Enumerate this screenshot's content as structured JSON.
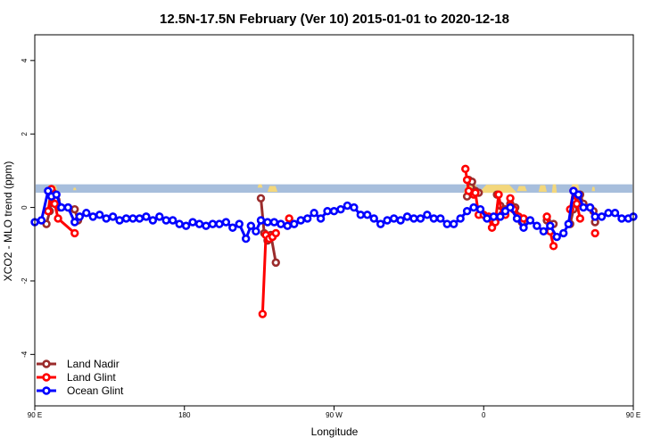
{
  "chart_data": {
    "type": "line",
    "title": "12.5N-17.5N February (Ver 10)   2015-01-01 to 2020-12-18",
    "xlabel": "Longitude",
    "ylabel": "XCO2 - MLO trend (ppm)",
    "xlim": [
      -90,
      270
    ],
    "ylim": [
      -5.4,
      4.7
    ],
    "x_ticks": [
      {
        "value": -90,
        "label": "90 E"
      },
      {
        "value": 0,
        "label": "180"
      },
      {
        "value": 90,
        "label": "90 W"
      },
      {
        "value": 180,
        "label": "0"
      },
      {
        "value": 270,
        "label": "90 E"
      }
    ],
    "y_ticks": [
      {
        "value": -4,
        "label": "-4"
      },
      {
        "value": -2,
        "label": "-2"
      },
      {
        "value": 0,
        "label": "0"
      },
      {
        "value": 2,
        "label": "2"
      },
      {
        "value": 4,
        "label": "4"
      }
    ],
    "grid": false,
    "legend_position": "bottom-left",
    "land_band": {
      "y_range": [
        0.4,
        0.63
      ],
      "ocean_color": "#a7bedc",
      "land_color": "#f3d77c"
    },
    "series": [
      {
        "name": "Land Nadir",
        "color": "#9b2c2c",
        "segments": [
          [
            [
              -83,
              -0.45
            ],
            [
              -81,
              -0.1
            ],
            [
              -79,
              0.4
            ],
            [
              -77,
              0.2
            ],
            [
              -75,
              0.0
            ],
            [
              -70,
              0.0
            ],
            [
              -66,
              -0.05
            ],
            [
              -64,
              -0.35
            ]
          ],
          [
            [
              46,
              0.25
            ],
            [
              48,
              -0.7
            ],
            [
              50,
              -0.9
            ],
            [
              52,
              -0.75
            ],
            [
              55,
              -1.5
            ]
          ],
          [
            [
              170,
              0.3
            ],
            [
              171,
              0.75
            ],
            [
              173,
              0.7
            ],
            [
              175,
              0.45
            ],
            [
              177,
              0.4
            ]
          ],
          [
            [
              188,
              0.35
            ],
            [
              190,
              0.05
            ],
            [
              193,
              -0.05
            ],
            [
              196,
              0.1
            ],
            [
              199,
              0.0
            ],
            [
              203,
              -0.4
            ]
          ],
          [
            [
              218,
              -0.35
            ],
            [
              220,
              -0.65
            ],
            [
              222,
              -0.45
            ]
          ],
          [
            [
              232,
              -0.45
            ],
            [
              234,
              -0.05
            ],
            [
              236,
              0.3
            ],
            [
              238,
              0.35
            ],
            [
              240,
              0.1
            ],
            [
              244,
              0.0
            ],
            [
              246,
              -0.1
            ],
            [
              247,
              -0.4
            ]
          ]
        ]
      },
      {
        "name": "Land Glint",
        "color": "#ff0000",
        "segments": [
          [
            [
              -82,
              -0.1
            ],
            [
              -80,
              0.5
            ],
            [
              -78,
              0.1
            ],
            [
              -76,
              -0.3
            ],
            [
              -66,
              -0.7
            ]
          ],
          [
            [
              47,
              -2.9
            ],
            [
              49,
              -0.75
            ],
            [
              51,
              -0.85
            ],
            [
              53,
              -0.8
            ],
            [
              55,
              -0.7
            ]
          ],
          [
            [
              63,
              -0.3
            ]
          ],
          [
            [
              169,
              1.05
            ],
            [
              170,
              0.75
            ],
            [
              171,
              0.45
            ],
            [
              174,
              0.35
            ],
            [
              175,
              0.4
            ],
            [
              177,
              -0.2
            ],
            [
              180,
              -0.2
            ],
            [
              183,
              -0.25
            ],
            [
              185,
              -0.55
            ],
            [
              187,
              -0.4
            ],
            [
              189,
              0.35
            ],
            [
              191,
              -0.2
            ],
            [
              193,
              -0.2
            ],
            [
              196,
              0.25
            ],
            [
              198,
              -0.05
            ],
            [
              201,
              -0.25
            ],
            [
              204,
              -0.3
            ]
          ],
          [
            [
              218,
              -0.25
            ],
            [
              220,
              -0.65
            ],
            [
              222,
              -1.05
            ]
          ],
          [
            [
              232,
              -0.05
            ],
            [
              234,
              0.45
            ],
            [
              236,
              0.1
            ],
            [
              238,
              -0.3
            ]
          ],
          [
            [
              247,
              -0.7
            ]
          ]
        ]
      },
      {
        "name": "Ocean Glint",
        "color": "#0000ff",
        "segments": [
          [
            [
              -90,
              -0.4
            ],
            [
              -86,
              -0.35
            ],
            [
              -82,
              0.45
            ],
            [
              -80,
              0.3
            ],
            [
              -77,
              0.35
            ],
            [
              -74,
              0.0
            ],
            [
              -70,
              0.0
            ],
            [
              -66,
              -0.4
            ],
            [
              -63,
              -0.25
            ],
            [
              -59,
              -0.15
            ],
            [
              -55,
              -0.25
            ],
            [
              -51,
              -0.2
            ],
            [
              -47,
              -0.3
            ],
            [
              -43,
              -0.25
            ],
            [
              -39,
              -0.35
            ],
            [
              -35,
              -0.3
            ],
            [
              -31,
              -0.3
            ],
            [
              -27,
              -0.3
            ],
            [
              -23,
              -0.25
            ],
            [
              -19,
              -0.35
            ],
            [
              -15,
              -0.25
            ],
            [
              -11,
              -0.35
            ],
            [
              -7,
              -0.35
            ],
            [
              -3,
              -0.45
            ],
            [
              1,
              -0.5
            ],
            [
              5,
              -0.4
            ],
            [
              9,
              -0.45
            ],
            [
              13,
              -0.5
            ],
            [
              17,
              -0.45
            ],
            [
              21,
              -0.45
            ],
            [
              25,
              -0.4
            ],
            [
              29,
              -0.55
            ],
            [
              33,
              -0.45
            ],
            [
              37,
              -0.85
            ],
            [
              40,
              -0.5
            ],
            [
              43,
              -0.65
            ],
            [
              46,
              -0.35
            ],
            [
              50,
              -0.4
            ],
            [
              54,
              -0.4
            ],
            [
              58,
              -0.45
            ],
            [
              62,
              -0.5
            ],
            [
              66,
              -0.45
            ],
            [
              70,
              -0.35
            ],
            [
              74,
              -0.3
            ],
            [
              78,
              -0.15
            ],
            [
              82,
              -0.3
            ],
            [
              86,
              -0.1
            ],
            [
              90,
              -0.1
            ],
            [
              94,
              -0.05
            ],
            [
              98,
              0.05
            ],
            [
              102,
              0.0
            ],
            [
              106,
              -0.2
            ],
            [
              110,
              -0.2
            ],
            [
              114,
              -0.3
            ],
            [
              118,
              -0.45
            ],
            [
              122,
              -0.35
            ],
            [
              126,
              -0.3
            ],
            [
              130,
              -0.35
            ],
            [
              134,
              -0.25
            ],
            [
              138,
              -0.3
            ],
            [
              142,
              -0.3
            ],
            [
              146,
              -0.2
            ],
            [
              150,
              -0.3
            ],
            [
              154,
              -0.3
            ],
            [
              158,
              -0.45
            ],
            [
              162,
              -0.45
            ],
            [
              166,
              -0.3
            ],
            [
              170,
              -0.1
            ],
            [
              174,
              0.0
            ],
            [
              178,
              -0.05
            ],
            [
              182,
              -0.3
            ],
            [
              186,
              -0.25
            ],
            [
              190,
              -0.25
            ],
            [
              193,
              -0.1
            ],
            [
              196,
              0.0
            ],
            [
              200,
              -0.3
            ],
            [
              204,
              -0.55
            ],
            [
              208,
              -0.35
            ],
            [
              212,
              -0.5
            ],
            [
              216,
              -0.65
            ],
            [
              220,
              -0.5
            ],
            [
              224,
              -0.8
            ],
            [
              228,
              -0.7
            ],
            [
              231,
              -0.45
            ],
            [
              234,
              0.45
            ],
            [
              237,
              0.35
            ],
            [
              240,
              0.0
            ],
            [
              244,
              0.0
            ],
            [
              247,
              -0.25
            ],
            [
              251,
              -0.25
            ],
            [
              255,
              -0.15
            ],
            [
              259,
              -0.15
            ],
            [
              263,
              -0.3
            ],
            [
              267,
              -0.3
            ],
            [
              270,
              -0.25
            ]
          ]
        ]
      }
    ]
  }
}
